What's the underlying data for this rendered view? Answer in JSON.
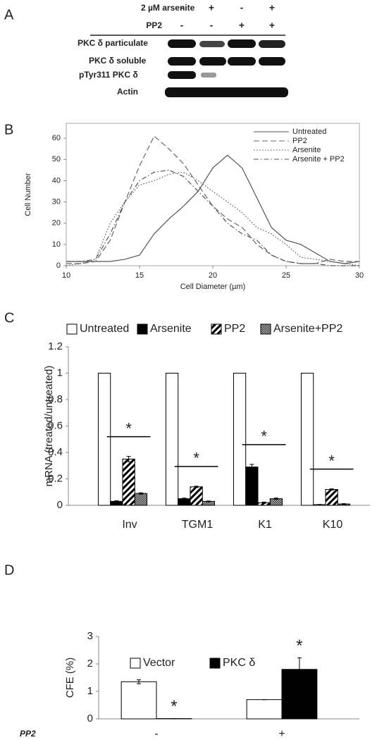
{
  "blot": {
    "panel": "A",
    "treatments": [
      {
        "label": "2 µM arsenite",
        "signs": [
          "-",
          "+",
          "-",
          "+"
        ]
      },
      {
        "label": "PP2",
        "signs": [
          "-",
          "-",
          "+",
          "+"
        ]
      }
    ],
    "rows": [
      "PKC δ particulate",
      "PKC δ soluble",
      "pTyr311 PKC δ",
      "Actin"
    ]
  },
  "chart_data": [
    {
      "panel": "B",
      "type": "line",
      "xlabel": "Cell Diameter (µm)",
      "ylabel": "Cell Number",
      "x": [
        10,
        11,
        12,
        13,
        14,
        15,
        16,
        17,
        18,
        19,
        20,
        21,
        22,
        23,
        24,
        25,
        26,
        27,
        28,
        29,
        30
      ],
      "series": [
        {
          "name": "Untreated",
          "color": "#555555",
          "line_style": "solid",
          "values": [
            2,
            2,
            2,
            2,
            3,
            5,
            15,
            22,
            28,
            35,
            46,
            52,
            46,
            32,
            18,
            12,
            10,
            6,
            2,
            1,
            2
          ]
        },
        {
          "name": "PP2",
          "color": "#666666",
          "line_style": "dashed",
          "values": [
            1,
            1,
            2,
            12,
            30,
            47,
            61,
            55,
            48,
            38,
            28,
            22,
            18,
            10,
            5,
            2,
            1,
            1,
            3,
            2,
            2
          ]
        },
        {
          "name": "Arsenite",
          "color": "#555555",
          "line_style": "dotted",
          "values": [
            0,
            1,
            3,
            20,
            30,
            38,
            40,
            43,
            44,
            40,
            35,
            30,
            25,
            18,
            15,
            10,
            4,
            3,
            2,
            1,
            0
          ]
        },
        {
          "name": "Arsenite + PP2",
          "color": "#555555",
          "line_style": "dashdot",
          "values": [
            2,
            2,
            3,
            15,
            30,
            40,
            44,
            45,
            42,
            35,
            28,
            20,
            15,
            12,
            5,
            2,
            1,
            1,
            0,
            0,
            0
          ]
        }
      ],
      "xlim": [
        10,
        30
      ],
      "ylim": [
        0,
        67
      ],
      "xticks": [
        10,
        15,
        20,
        25,
        30
      ],
      "yticks": [
        0,
        10,
        20,
        30,
        40,
        50,
        60
      ],
      "legend": "upper right"
    },
    {
      "panel": "C",
      "type": "bar",
      "ylabel": "mRNA (treated/untreated)",
      "categories": [
        "Inv",
        "TGM1",
        "K1",
        "K10"
      ],
      "series": [
        {
          "name": "Untreated",
          "color": "#ffffff",
          "pattern": "none",
          "values": [
            1,
            1,
            1,
            1
          ]
        },
        {
          "name": "Arsenite",
          "color": "#000000",
          "pattern": "solid",
          "values": [
            0.03,
            0.05,
            0.29,
            0.005
          ],
          "errors": [
            0.005,
            0.005,
            0.02,
            0.002
          ]
        },
        {
          "name": "PP2",
          "color": "#000000",
          "pattern": "hatch",
          "values": [
            0.35,
            0.14,
            0.02,
            0.12
          ],
          "errors": [
            0.02,
            0.005,
            0.005,
            0.005
          ]
        },
        {
          "name": "Arsenite+PP2",
          "color": "#555555",
          "pattern": "crosshatch",
          "values": [
            0.09,
            0.03,
            0.05,
            0.01
          ],
          "errors": [
            0.005,
            0.003,
            0.005,
            0.003
          ]
        }
      ],
      "ylim": [
        0,
        1.2
      ],
      "yticks": [
        0,
        0.2,
        0.4,
        0.6,
        0.8,
        1,
        1.2
      ],
      "significance": [
        "*",
        "*",
        "*",
        "*"
      ],
      "legend": "top"
    },
    {
      "panel": "D",
      "type": "bar",
      "ylabel": "CFE (%)",
      "xlabel": "PP2",
      "categories": [
        "-",
        "+"
      ],
      "series": [
        {
          "name": "Vector",
          "color": "#ffffff",
          "pattern": "none",
          "values": [
            1.35,
            0.7
          ],
          "errors": [
            0.07,
            0
          ]
        },
        {
          "name": "PKC δ",
          "color": "#000000",
          "pattern": "solid",
          "values": [
            0.01,
            1.8
          ],
          "errors": [
            0,
            0.42
          ],
          "significance": [
            "*",
            "*"
          ]
        }
      ],
      "ylim": [
        0,
        3
      ],
      "yticks": [
        0,
        1,
        2,
        3
      ],
      "legend": "top"
    }
  ]
}
